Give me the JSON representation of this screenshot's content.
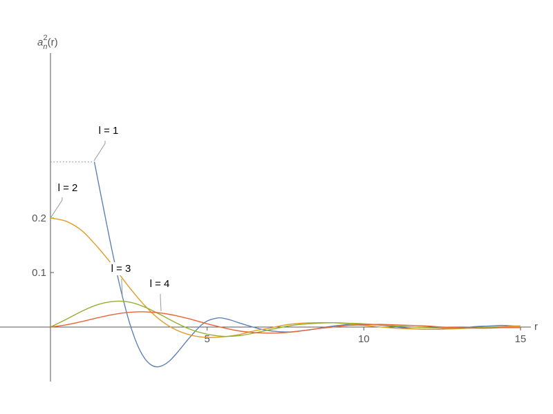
{
  "chart_data": {
    "type": "line",
    "title": "",
    "xlabel": "r",
    "ylabel_base": "a",
    "ylabel_sub": "n",
    "ylabel_sup": "2",
    "ylabel_tail": "(r)",
    "xlim": [
      0,
      15.3
    ],
    "ylim": [
      -0.1,
      0.5
    ],
    "x_ticks": [
      {
        "value": 5,
        "label": "5"
      },
      {
        "value": 10,
        "label": "10"
      },
      {
        "value": 15,
        "label": "15"
      }
    ],
    "y_ticks": [
      {
        "value": 0.1,
        "label": "0.1"
      },
      {
        "value": 0.2,
        "label": "0.2"
      }
    ],
    "grid": false,
    "legend": "callouts",
    "series": [
      {
        "name": "l = 1",
        "color": "#5E81B5",
        "dotted_plateau": {
          "x": [
            0,
            1.4
          ],
          "y": 0.303
        },
        "x": [
          1.4,
          1.6,
          1.8,
          2.0,
          2.2,
          2.4,
          2.6,
          2.8,
          3.0,
          3.2,
          3.4,
          3.6,
          3.8,
          4.0,
          4.2,
          4.4,
          4.6,
          4.8,
          5.0,
          5.2,
          5.4,
          5.6,
          5.8,
          6.0,
          6.4,
          6.8,
          7.2,
          7.6,
          8.0,
          8.4,
          8.8,
          9.2,
          9.6,
          10.0,
          10.4,
          10.8,
          11.2,
          11.6,
          12.0,
          12.4,
          12.8,
          13.2,
          13.6,
          14.0,
          14.4,
          14.8,
          15.0
        ],
        "y": [
          0.303,
          0.245,
          0.187,
          0.131,
          0.079,
          0.033,
          -0.006,
          -0.036,
          -0.057,
          -0.069,
          -0.073,
          -0.07,
          -0.062,
          -0.05,
          -0.036,
          -0.022,
          -0.009,
          0.003,
          0.011,
          0.015,
          0.017,
          0.015,
          0.012,
          0.008,
          0.001,
          -0.005,
          -0.008,
          -0.009,
          -0.007,
          -0.004,
          0.0,
          0.003,
          0.005,
          0.005,
          0.004,
          0.002,
          -0.001,
          -0.003,
          -0.004,
          -0.004,
          -0.002,
          -0.001,
          0.001,
          0.002,
          0.003,
          0.002,
          0.002
        ]
      },
      {
        "name": "l = 2",
        "color": "#E19C24",
        "x": [
          0,
          0.5,
          1.0,
          1.5,
          2.0,
          2.5,
          3.0,
          3.5,
          4.0,
          4.5,
          5.0,
          5.5,
          6.0,
          6.5,
          7.0,
          7.5,
          8.0,
          8.5,
          9.0,
          9.5,
          10.0,
          11.0,
          12.0,
          13.0,
          14.0,
          15.0
        ],
        "y": [
          0.2,
          0.194,
          0.177,
          0.147,
          0.112,
          0.074,
          0.04,
          0.013,
          -0.005,
          -0.015,
          -0.019,
          -0.018,
          -0.014,
          -0.007,
          -0.002,
          0.004,
          0.007,
          0.008,
          0.008,
          0.006,
          0.003,
          -0.002,
          -0.004,
          -0.003,
          0.0,
          0.002
        ]
      },
      {
        "name": "l = 3",
        "color": "#8FB032",
        "x": [
          0,
          0.5,
          1.0,
          1.5,
          2.0,
          2.5,
          3.0,
          3.5,
          4.0,
          4.5,
          5.0,
          5.5,
          6.0,
          6.5,
          7.0,
          7.5,
          8.0,
          8.5,
          9.0,
          9.5,
          10.0,
          10.5,
          11.0,
          12.0,
          13.0,
          14.0,
          15.0
        ],
        "y": [
          0.0,
          0.014,
          0.029,
          0.041,
          0.047,
          0.046,
          0.037,
          0.023,
          0.008,
          -0.005,
          -0.013,
          -0.017,
          -0.016,
          -0.011,
          -0.005,
          0.001,
          0.005,
          0.007,
          0.008,
          0.007,
          0.006,
          0.004,
          0.002,
          -0.001,
          -0.002,
          -0.001,
          0.0
        ]
      },
      {
        "name": "l = 4",
        "color": "#EB6235",
        "x": [
          0,
          0.5,
          1.0,
          1.5,
          2.0,
          2.5,
          3.0,
          3.5,
          4.0,
          4.5,
          5.0,
          5.5,
          6.0,
          6.5,
          7.0,
          7.5,
          8.0,
          8.5,
          9.0,
          9.5,
          10.0,
          10.5,
          11.0,
          11.5,
          12.0,
          12.5,
          13.0,
          13.5,
          14.0,
          14.5,
          15.0
        ],
        "y": [
          0.0,
          0.004,
          0.01,
          0.017,
          0.023,
          0.027,
          0.028,
          0.026,
          0.021,
          0.014,
          0.006,
          -0.001,
          -0.007,
          -0.01,
          -0.011,
          -0.01,
          -0.007,
          -0.003,
          0.0,
          0.003,
          0.004,
          0.005,
          0.004,
          0.003,
          0.002,
          0.0,
          -0.001,
          -0.002,
          -0.002,
          -0.001,
          -0.001
        ]
      }
    ]
  }
}
